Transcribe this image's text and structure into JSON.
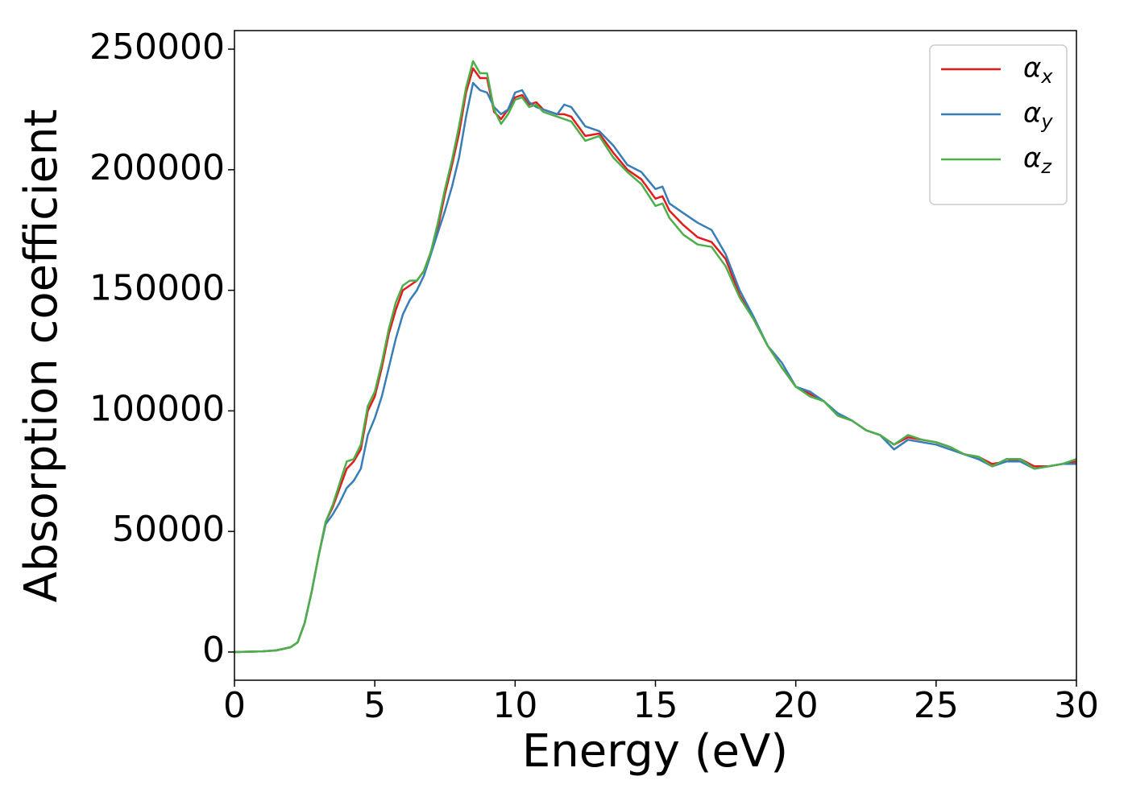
{
  "chart_data": {
    "type": "line",
    "x_label": "Energy (eV)",
    "y_label": "Absorption coefficient",
    "x": [
      0,
      1,
      1.5,
      2,
      2.25,
      2.5,
      2.75,
      3,
      3.25,
      3.5,
      3.75,
      4,
      4.25,
      4.5,
      4.75,
      5,
      5.25,
      5.5,
      5.75,
      6,
      6.25,
      6.5,
      6.75,
      7,
      7.25,
      7.5,
      7.75,
      8,
      8.25,
      8.5,
      8.75,
      9,
      9.25,
      9.5,
      9.75,
      10,
      10.25,
      10.5,
      10.75,
      11,
      11.5,
      11.75,
      12,
      12.5,
      13,
      13.5,
      14,
      14.5,
      15,
      15.25,
      15.5,
      16,
      16.5,
      17,
      17.5,
      18,
      18.5,
      19,
      19.5,
      20,
      20.5,
      21,
      21.5,
      22,
      22.5,
      23,
      23.5,
      24,
      24.5,
      25,
      25.5,
      26,
      26.5,
      27,
      27.5,
      28,
      28.5,
      29,
      29.5,
      30
    ],
    "series": [
      {
        "name": "αx",
        "color": "#e41a1c",
        "values": [
          0,
          300,
          700,
          2000,
          4000,
          12000,
          25000,
          40000,
          54000,
          60000,
          68000,
          76000,
          79000,
          84000,
          100000,
          106000,
          118000,
          132000,
          142000,
          150000,
          152000,
          154000,
          158000,
          166000,
          176000,
          190000,
          202000,
          215000,
          232000,
          242000,
          238000,
          238000,
          224000,
          221000,
          225000,
          230000,
          231000,
          227000,
          228000,
          225000,
          223000,
          223000,
          222000,
          214000,
          215000,
          207000,
          200000,
          196000,
          188000,
          189000,
          183000,
          177000,
          172000,
          170000,
          163000,
          148000,
          138000,
          127000,
          118000,
          110000,
          107000,
          104000,
          98000,
          96000,
          92000,
          90000,
          86000,
          89000,
          88000,
          87000,
          85000,
          82000,
          81000,
          78000,
          79000,
          80000,
          77000,
          77000,
          78000,
          79000
        ]
      },
      {
        "name": "αy",
        "color": "#377eb8",
        "values": [
          0,
          300,
          700,
          2000,
          4000,
          12000,
          25000,
          40000,
          53000,
          57000,
          62000,
          68000,
          71000,
          76000,
          90000,
          97000,
          106000,
          118000,
          130000,
          140000,
          146000,
          150000,
          156000,
          165000,
          174000,
          183000,
          193000,
          205000,
          222000,
          236000,
          233000,
          232000,
          226000,
          223000,
          225000,
          232000,
          233000,
          228000,
          226000,
          225000,
          223000,
          227000,
          226000,
          218000,
          216000,
          210000,
          202000,
          199000,
          192000,
          193000,
          186000,
          182000,
          178000,
          175000,
          165000,
          150000,
          139000,
          127000,
          120000,
          110000,
          108000,
          104000,
          99000,
          96000,
          92000,
          90000,
          84000,
          88000,
          87000,
          86000,
          84000,
          82000,
          80000,
          77000,
          79000,
          79000,
          76000,
          77000,
          78000,
          78000
        ]
      },
      {
        "name": "αz",
        "color": "#4daf4a",
        "values": [
          0,
          300,
          700,
          2000,
          4000,
          12000,
          25000,
          40000,
          54000,
          61000,
          70000,
          79000,
          80000,
          86000,
          102000,
          108000,
          120000,
          134000,
          145000,
          152000,
          154000,
          154000,
          158000,
          166000,
          178000,
          192000,
          204000,
          218000,
          234000,
          245000,
          240000,
          240000,
          225000,
          219000,
          223000,
          229000,
          230000,
          226000,
          227000,
          224000,
          222000,
          221000,
          220000,
          212000,
          214000,
          205000,
          199000,
          194000,
          185000,
          186000,
          180000,
          173000,
          169000,
          168000,
          160000,
          147000,
          138000,
          127000,
          118000,
          110000,
          106000,
          104000,
          98000,
          96000,
          92000,
          90000,
          86000,
          90000,
          88000,
          87000,
          85000,
          82000,
          81000,
          77000,
          80000,
          80000,
          76000,
          77000,
          78000,
          80000
        ]
      }
    ],
    "xlim": [
      0,
      30
    ],
    "xticks": [
      0,
      5,
      10,
      15,
      20,
      25,
      30
    ],
    "ylim": [
      -11700,
      257700
    ],
    "yticks": [
      0,
      50000,
      100000,
      150000,
      200000,
      250000
    ],
    "grid": false,
    "legend": "upper right"
  }
}
